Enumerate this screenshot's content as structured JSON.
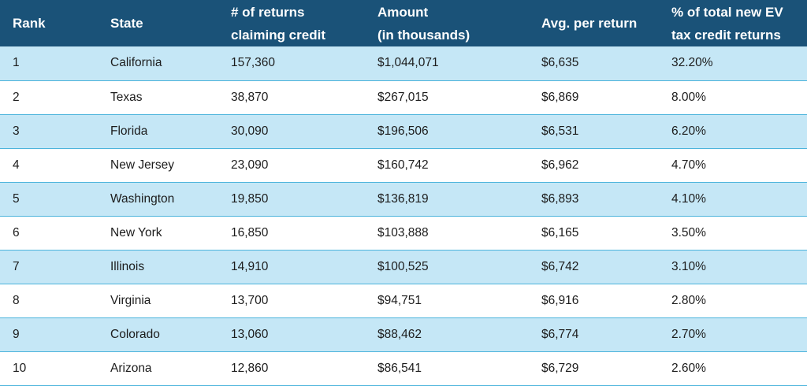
{
  "headers": {
    "rank": [
      "Rank"
    ],
    "state": [
      "State"
    ],
    "returns": [
      "# of returns",
      "claiming credit"
    ],
    "amount": [
      "Amount",
      "(in thousands)"
    ],
    "avg": [
      "Avg. per return"
    ],
    "pct": [
      "% of total new EV",
      "tax credit returns"
    ]
  },
  "rows": [
    {
      "rank": "1",
      "state": "California",
      "returns": "157,360",
      "amount": "$1,044,071",
      "avg": "$6,635",
      "pct": "32.20%"
    },
    {
      "rank": "2",
      "state": "Texas",
      "returns": "38,870",
      "amount": "$267,015",
      "avg": "$6,869",
      "pct": "8.00%"
    },
    {
      "rank": "3",
      "state": "Florida",
      "returns": "30,090",
      "amount": "$196,506",
      "avg": "$6,531",
      "pct": "6.20%"
    },
    {
      "rank": "4",
      "state": "New Jersey",
      "returns": "23,090",
      "amount": "$160,742",
      "avg": "$6,962",
      "pct": "4.70%"
    },
    {
      "rank": "5",
      "state": "Washington",
      "returns": "19,850",
      "amount": "$136,819",
      "avg": "$6,893",
      "pct": "4.10%"
    },
    {
      "rank": "6",
      "state": "New York",
      "returns": "16,850",
      "amount": "$103,888",
      "avg": "$6,165",
      "pct": "3.50%"
    },
    {
      "rank": "7",
      "state": "Illinois",
      "returns": "14,910",
      "amount": "$100,525",
      "avg": "$6,742",
      "pct": "3.10%"
    },
    {
      "rank": "8",
      "state": "Virginia",
      "returns": "13,700",
      "amount": "$94,751",
      "avg": "$6,916",
      "pct": "2.80%"
    },
    {
      "rank": "9",
      "state": "Colorado",
      "returns": "13,060",
      "amount": "$88,462",
      "avg": "$6,774",
      "pct": "2.70%"
    },
    {
      "rank": "10",
      "state": "Arizona",
      "returns": "12,860",
      "amount": "$86,541",
      "avg": "$6,729",
      "pct": "2.60%"
    }
  ],
  "colors": {
    "header_bg": "#1a5278",
    "row_alt_bg": "#c5e7f6",
    "row_border": "#4cb4dc"
  }
}
